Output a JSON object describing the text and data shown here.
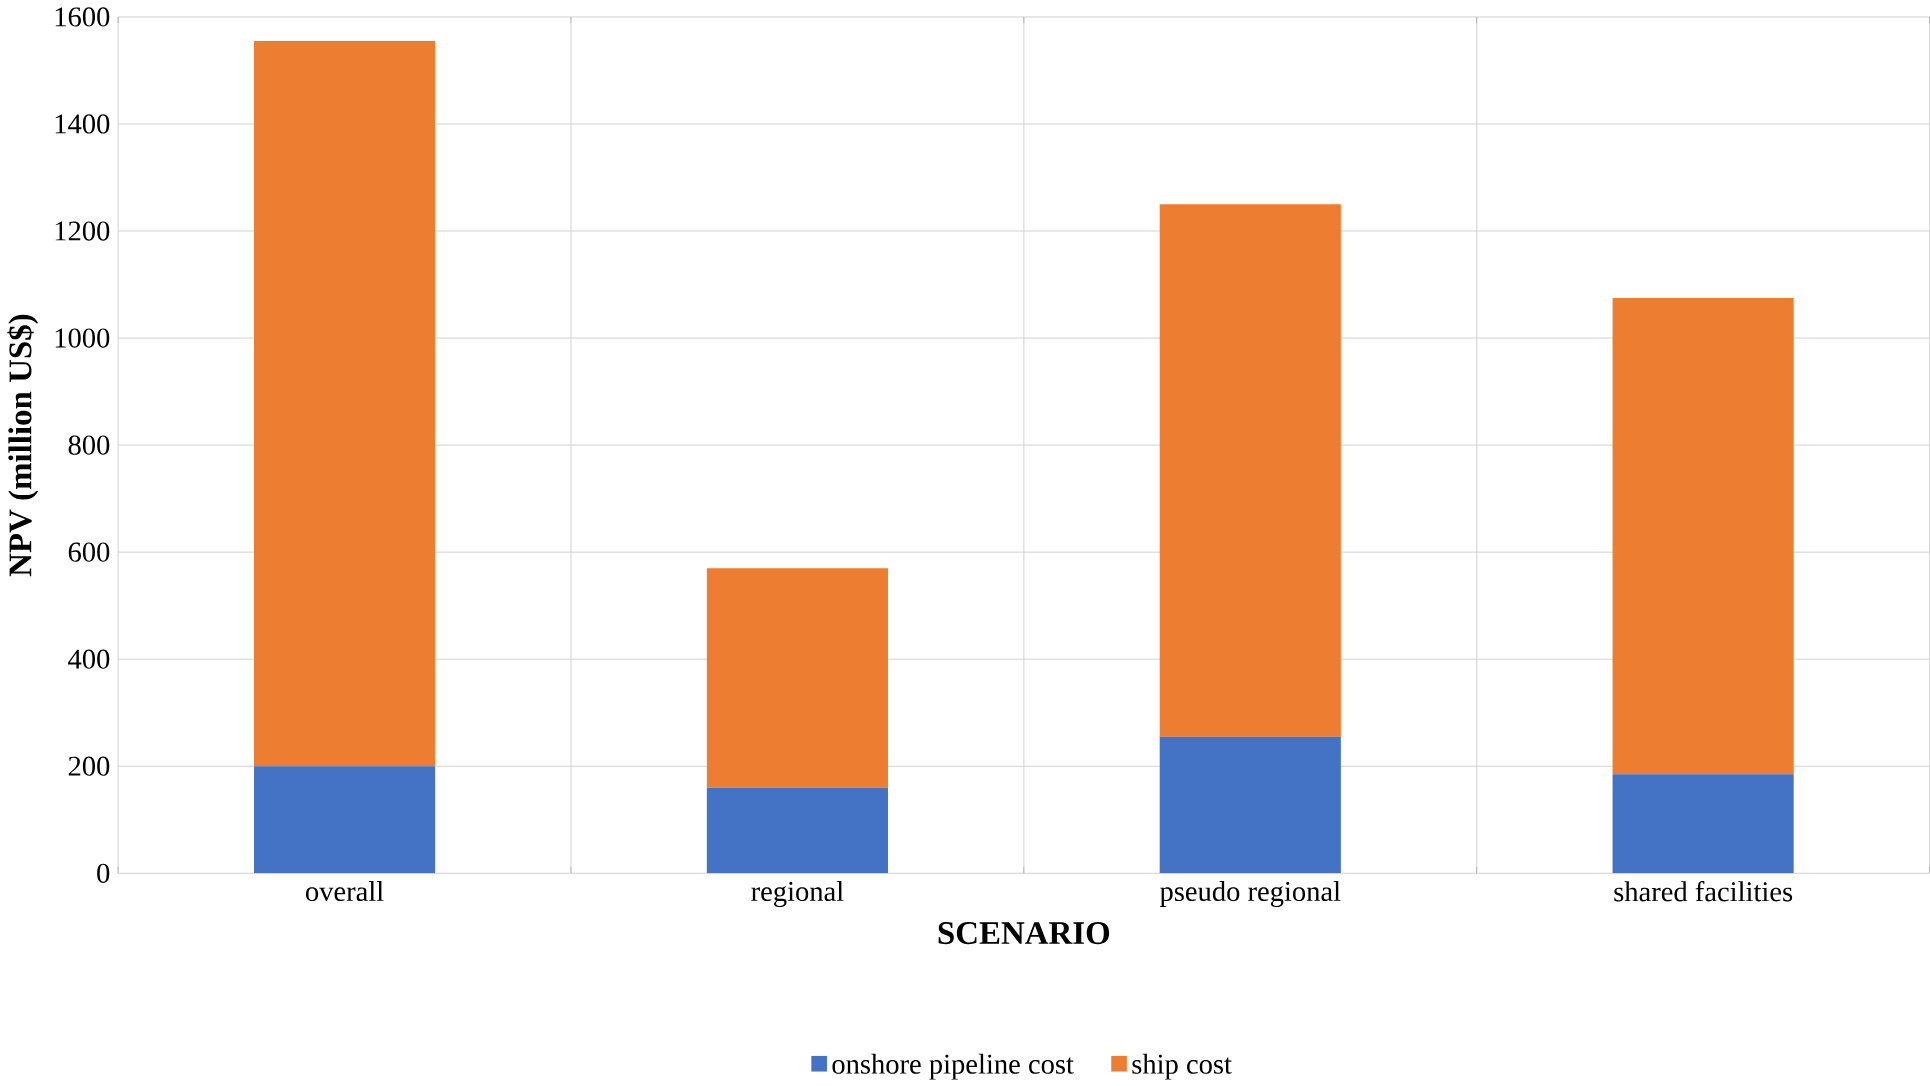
{
  "chart_data": {
    "type": "bar",
    "stacked": true,
    "xlabel": "SCENARIO",
    "ylabel": "NPV (million US$)",
    "categories": [
      "overall",
      "regional",
      "pseudo regional",
      "shared facilities"
    ],
    "series": [
      {
        "name": "onshore pipeline cost",
        "color": "#4472c4",
        "values": [
          200,
          160,
          255,
          185
        ]
      },
      {
        "name": "ship cost",
        "color": "#ed7d31",
        "values": [
          1355,
          410,
          995,
          890
        ]
      }
    ],
    "ylim": [
      0,
      1600
    ],
    "yticks": [
      0,
      200,
      400,
      600,
      800,
      1000,
      1200,
      1400,
      1600
    ],
    "grid": true,
    "legend": "bottom"
  }
}
